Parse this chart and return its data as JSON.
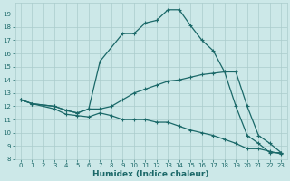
{
  "xlabel": "Humidex (Indice chaleur)",
  "bg_color": "#cce8e8",
  "grid_color": "#aacccc",
  "line_color": "#1a6868",
  "xlim": [
    -0.5,
    23.5
  ],
  "ylim": [
    8,
    19.8
  ],
  "xticks": [
    0,
    1,
    2,
    3,
    4,
    5,
    6,
    7,
    8,
    9,
    10,
    11,
    12,
    13,
    14,
    15,
    16,
    17,
    18,
    19,
    20,
    21,
    22,
    23
  ],
  "yticks": [
    8,
    9,
    10,
    11,
    12,
    13,
    14,
    15,
    16,
    17,
    18,
    19
  ],
  "line1_x": [
    0,
    1,
    3,
    4,
    5,
    6,
    7,
    9,
    10,
    11,
    12,
    13,
    14,
    15,
    16,
    17,
    18,
    19,
    20,
    21,
    22,
    23
  ],
  "line1_y": [
    12.5,
    12.2,
    12.0,
    11.7,
    11.5,
    11.8,
    15.4,
    17.5,
    17.5,
    18.3,
    18.5,
    19.3,
    19.3,
    18.1,
    17.0,
    16.2,
    14.6,
    12.0,
    9.8,
    9.2,
    8.5,
    8.5
  ],
  "line2_x": [
    0,
    1,
    3,
    4,
    5,
    6,
    7,
    8,
    9,
    10,
    11,
    12,
    13,
    14,
    15,
    16,
    17,
    18,
    19,
    20,
    21,
    22,
    23
  ],
  "line2_y": [
    12.5,
    12.2,
    12.0,
    11.7,
    11.5,
    11.8,
    11.8,
    12.0,
    12.5,
    13.0,
    13.3,
    13.6,
    13.9,
    14.0,
    14.2,
    14.4,
    14.5,
    14.6,
    14.6,
    12.0,
    9.8,
    9.2,
    8.5
  ],
  "line3_x": [
    0,
    1,
    3,
    4,
    5,
    6,
    7,
    8,
    9,
    10,
    11,
    12,
    13,
    14,
    15,
    16,
    17,
    18,
    19,
    20,
    21,
    22,
    23
  ],
  "line3_y": [
    12.5,
    12.2,
    11.8,
    11.4,
    11.3,
    11.2,
    11.5,
    11.3,
    11.0,
    11.0,
    11.0,
    10.8,
    10.8,
    10.5,
    10.2,
    10.0,
    9.8,
    9.5,
    9.2,
    8.8,
    8.8,
    8.6,
    8.4
  ]
}
